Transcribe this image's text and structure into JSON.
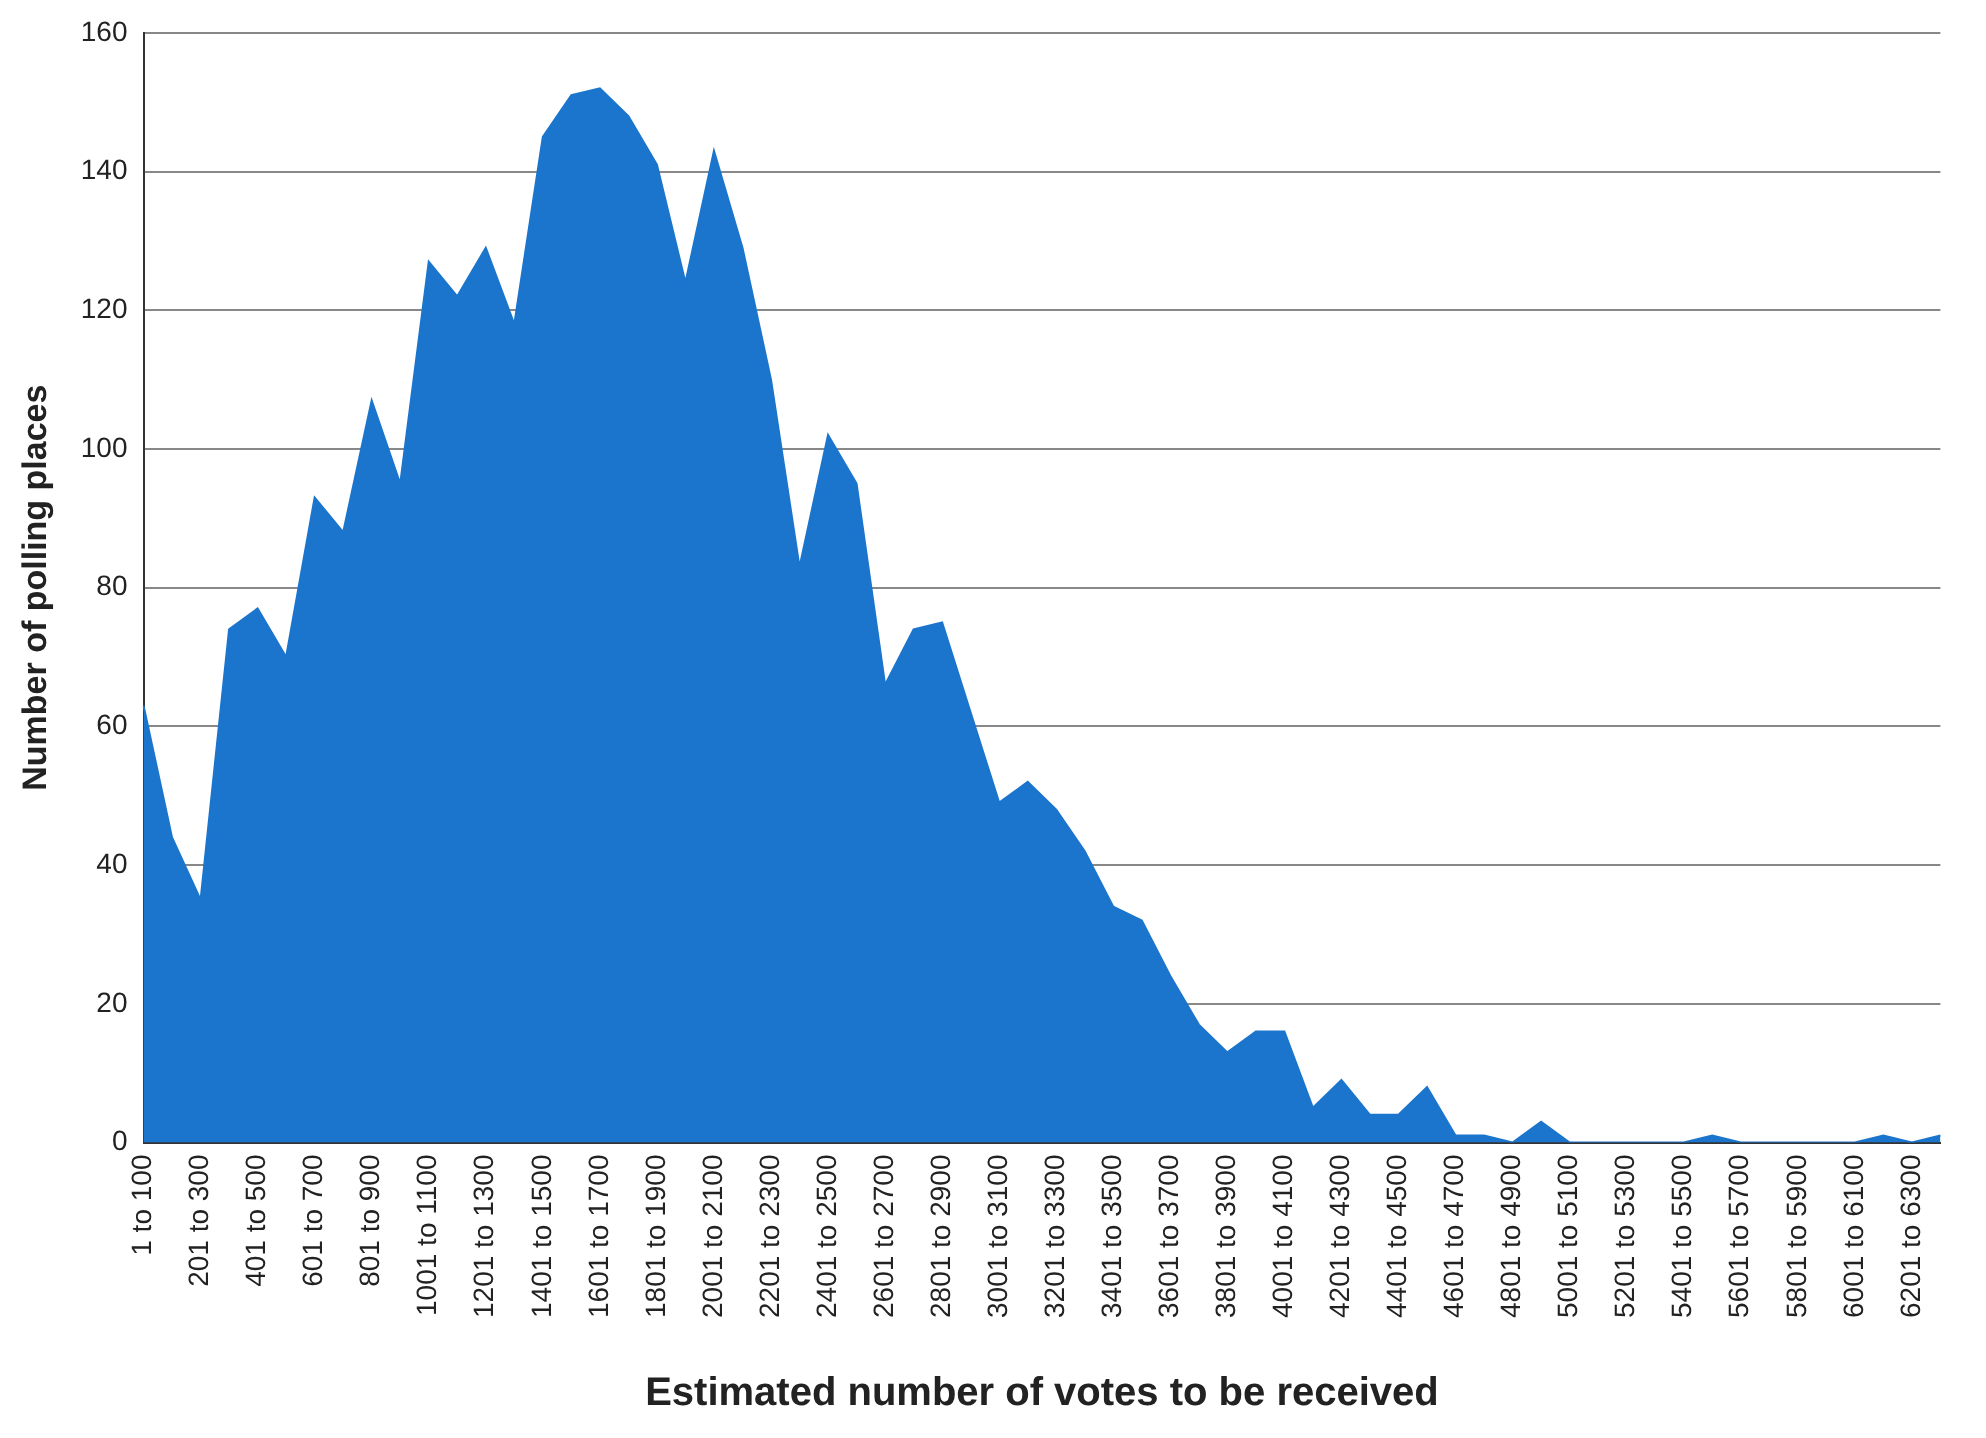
{
  "chart_data": {
    "type": "area",
    "xlabel": "Estimated number of votes to be received",
    "ylabel": "Number of polling places",
    "categories": [
      "1 to 100",
      null,
      "201 to 300",
      null,
      "401 to 500",
      null,
      "601 to 700",
      null,
      "801 to 900",
      null,
      "1001 to 1100",
      null,
      "1201 to 1300",
      null,
      "1401 to 1500",
      null,
      "1601 to 1700",
      null,
      "1801 to 1900",
      null,
      "2001 to 2100",
      null,
      "2201 to 2300",
      null,
      "2401 to 2500",
      null,
      "2601 to 2700",
      null,
      "2801 to 2900",
      null,
      "3001 to 3100",
      null,
      "3201 to 3300",
      null,
      "3401 to 3500",
      null,
      "3601 to 3700",
      null,
      "3801 to 3900",
      null,
      "4001 to 4100",
      null,
      "4201 to 4300",
      null,
      "4401 to 4500",
      null,
      "4601 to 4700",
      null,
      "4801 to 4900",
      null,
      "5001 to 5100",
      null,
      "5201 to 5300",
      null,
      "5401 to 5500",
      null,
      "5601 to 5700",
      null,
      "5801 to 5900",
      null,
      "6001 to 6100",
      null,
      "6201 to 6300",
      null
    ],
    "series": [
      {
        "color": "#1b75cd",
        "values": [
          63,
          44,
          35,
          74,
          77,
          70,
          93,
          88,
          107,
          95,
          127,
          122,
          129,
          118,
          145,
          151,
          152,
          148,
          141,
          124,
          143,
          129,
          110,
          83,
          102,
          95,
          66,
          74,
          75,
          62,
          49,
          52,
          48,
          42,
          34,
          32,
          24,
          17,
          13,
          16,
          16,
          5,
          9,
          4,
          4,
          8,
          1,
          1,
          0,
          3,
          0,
          0,
          0,
          0,
          0,
          1,
          0,
          0,
          0,
          0,
          0,
          1,
          0,
          1
        ]
      }
    ],
    "ylim": [
      0,
      160
    ],
    "yticks": [
      0,
      20,
      40,
      60,
      80,
      100,
      120,
      140,
      160
    ],
    "grid": "y",
    "legend": false
  }
}
